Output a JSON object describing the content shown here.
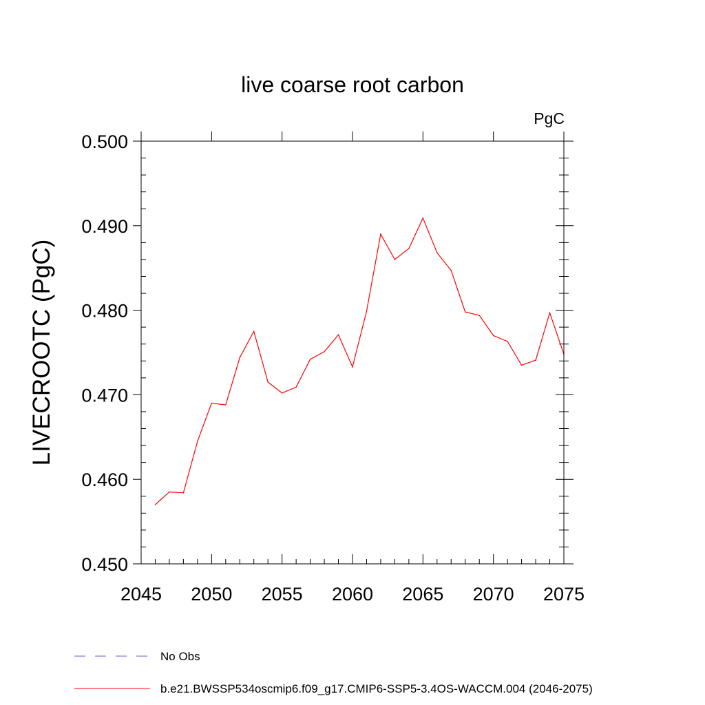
{
  "chart_data": {
    "type": "line",
    "title": "live coarse root carbon",
    "units_label": "PgC",
    "ylabel": "LIVECROOTC  (PgC)",
    "xlabel": "",
    "xlim": [
      2045,
      2075
    ],
    "ylim": [
      0.45,
      0.5
    ],
    "x_ticks": [
      2045,
      2050,
      2055,
      2060,
      2065,
      2070,
      2075
    ],
    "x_tick_labels": [
      "2045",
      "2050",
      "2055",
      "2060",
      "2065",
      "2070",
      "2075"
    ],
    "y_ticks": [
      0.45,
      0.46,
      0.47,
      0.48,
      0.49,
      0.5
    ],
    "y_tick_labels": [
      "0.450",
      "0.460",
      "0.470",
      "0.480",
      "0.490",
      "0.500"
    ],
    "grid": false,
    "legend_position": "bottom-left",
    "series": [
      {
        "name": "b.e21.BWSSP534oscmip6.f09_g17.CMIP6-SSP5-3.4OS-WACCM.004 (2046-2075)",
        "color": "#ff0000",
        "style": "solid",
        "x": [
          2046,
          2047,
          2048,
          2049,
          2050,
          2051,
          2052,
          2053,
          2054,
          2055,
          2056,
          2057,
          2058,
          2059,
          2060,
          2061,
          2062,
          2063,
          2064,
          2065,
          2066,
          2067,
          2068,
          2069,
          2070,
          2071,
          2072,
          2073,
          2074,
          2075
        ],
        "values": [
          0.457,
          0.4585,
          0.4584,
          0.4645,
          0.469,
          0.4688,
          0.4744,
          0.4775,
          0.4715,
          0.4702,
          0.4709,
          0.4742,
          0.4751,
          0.4771,
          0.4733,
          0.4799,
          0.489,
          0.486,
          0.4873,
          0.4909,
          0.4868,
          0.4847,
          0.4798,
          0.4794,
          0.477,
          0.4763,
          0.4735,
          0.4741,
          0.4797,
          0.4748
        ]
      }
    ],
    "legend": [
      {
        "label": "No Obs",
        "color": "#6a5acd",
        "style": "dashed"
      },
      {
        "label": "b.e21.BWSSP534oscmip6.f09_g17.CMIP6-SSP5-3.4OS-WACCM.004 (2046-2075)",
        "color": "#ff0000",
        "style": "solid"
      }
    ]
  }
}
